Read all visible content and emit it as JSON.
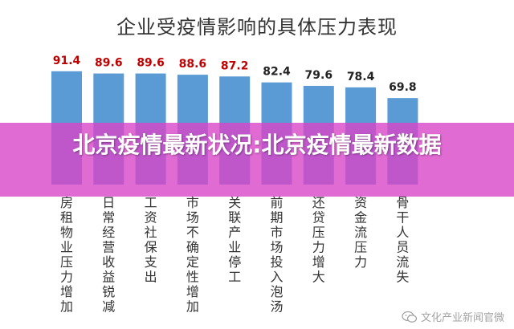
{
  "chart_data": {
    "type": "bar",
    "title": "企业受疫情影响的具体压力表现",
    "xlabel": "",
    "ylabel": "",
    "ylim": [
      0,
      100
    ],
    "grid": false,
    "categories": [
      "房租物业压力增加",
      "日常经营收益锐减",
      "工资社保支出",
      "市场不确定性增加",
      "关联产业停工",
      "前期市场投入泡汤",
      "还贷压力增大",
      "资金流压力",
      "骨干人员流失"
    ],
    "values": [
      91.4,
      89.6,
      89.6,
      88.6,
      87.2,
      82.4,
      79.6,
      78.4,
      69.8
    ],
    "value_labels": [
      "91.4",
      "89.6",
      "89.6",
      "88.6",
      "87.2",
      "82.4",
      "79.6",
      "78.4",
      "69.8"
    ],
    "highlight_count": 5,
    "colors": {
      "bar": "#5b9bd5",
      "label_highlight": "#c00000",
      "label_normal": "#222222",
      "title": "#333333"
    }
  },
  "overlay": {
    "text": "北京疫情最新状况:北京疫情最新数据",
    "color": "#d846c8"
  },
  "watermark": {
    "text": "文化产业新闻官微",
    "icon": "wechat-icon"
  }
}
